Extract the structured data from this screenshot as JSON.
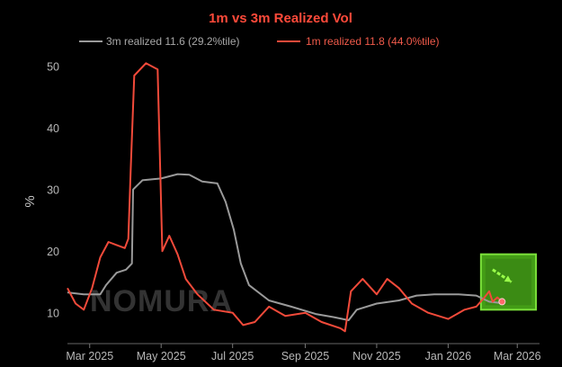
{
  "chart_data": {
    "type": "line",
    "title": "1m vs 3m Realized Vol",
    "ylabel": "%",
    "xlabel": "",
    "ylim": [
      5,
      52
    ],
    "yticks": [
      10,
      20,
      30,
      40,
      50
    ],
    "xlim": [
      "2025-02-10",
      "2026-03-20"
    ],
    "xticks": [
      {
        "date": "2025-03-01",
        "label": "Mar 2025"
      },
      {
        "date": "2025-05-01",
        "label": "May 2025"
      },
      {
        "date": "2025-07-01",
        "label": "Jul 2025"
      },
      {
        "date": "2025-09-01",
        "label": "Sep 2025"
      },
      {
        "date": "2025-11-01",
        "label": "Nov 2025"
      },
      {
        "date": "2026-01-01",
        "label": "Jan 2026"
      },
      {
        "date": "2026-03-01",
        "label": "Mar 2026"
      }
    ],
    "grid": false,
    "legend_position": "top",
    "series": [
      {
        "name": "3m realized 11.6 (29.2%tile)",
        "color": "#9a9a9a",
        "points": [
          [
            "2025-02-10",
            13.3
          ],
          [
            "2025-02-24",
            13.0
          ],
          [
            "2025-03-10",
            13.0
          ],
          [
            "2025-03-15",
            14.5
          ],
          [
            "2025-03-24",
            16.5
          ],
          [
            "2025-04-01",
            17.0
          ],
          [
            "2025-04-06",
            18.0
          ],
          [
            "2025-04-07",
            30.0
          ],
          [
            "2025-04-15",
            31.5
          ],
          [
            "2025-05-01",
            31.8
          ],
          [
            "2025-05-15",
            32.5
          ],
          [
            "2025-05-25",
            32.4
          ],
          [
            "2025-06-05",
            31.3
          ],
          [
            "2025-06-18",
            31.0
          ],
          [
            "2025-06-25",
            28.0
          ],
          [
            "2025-07-02",
            23.5
          ],
          [
            "2025-07-08",
            18.0
          ],
          [
            "2025-07-15",
            14.5
          ],
          [
            "2025-08-01",
            12.0
          ],
          [
            "2025-08-20",
            11.0
          ],
          [
            "2025-09-10",
            9.8
          ],
          [
            "2025-09-25",
            9.3
          ],
          [
            "2025-10-08",
            8.8
          ],
          [
            "2025-10-15",
            10.5
          ],
          [
            "2025-11-01",
            11.5
          ],
          [
            "2025-11-20",
            12.0
          ],
          [
            "2025-12-05",
            12.8
          ],
          [
            "2025-12-20",
            13.0
          ],
          [
            "2026-01-10",
            13.0
          ],
          [
            "2026-01-25",
            12.8
          ],
          [
            "2026-02-05",
            11.8
          ],
          [
            "2026-02-14",
            11.6
          ]
        ]
      },
      {
        "name": "1m realized 11.8 (44.0%tile)",
        "color": "#f24a3a",
        "points": [
          [
            "2025-02-10",
            14.0
          ],
          [
            "2025-02-17",
            11.5
          ],
          [
            "2025-02-24",
            10.5
          ],
          [
            "2025-03-03",
            14.0
          ],
          [
            "2025-03-10",
            19.0
          ],
          [
            "2025-03-17",
            21.5
          ],
          [
            "2025-03-24",
            21.0
          ],
          [
            "2025-03-31",
            20.5
          ],
          [
            "2025-04-03",
            22.0
          ],
          [
            "2025-04-05",
            33.0
          ],
          [
            "2025-04-08",
            48.5
          ],
          [
            "2025-04-18",
            50.5
          ],
          [
            "2025-04-28",
            49.5
          ],
          [
            "2025-05-02",
            20.0
          ],
          [
            "2025-05-08",
            22.5
          ],
          [
            "2025-05-15",
            19.5
          ],
          [
            "2025-05-22",
            15.5
          ],
          [
            "2025-06-01",
            13.0
          ],
          [
            "2025-06-15",
            10.5
          ],
          [
            "2025-07-01",
            10.0
          ],
          [
            "2025-07-10",
            8.0
          ],
          [
            "2025-07-20",
            8.5
          ],
          [
            "2025-08-01",
            11.0
          ],
          [
            "2025-08-15",
            9.5
          ],
          [
            "2025-09-01",
            10.0
          ],
          [
            "2025-09-15",
            8.5
          ],
          [
            "2025-10-01",
            7.5
          ],
          [
            "2025-10-05",
            7.0
          ],
          [
            "2025-10-10",
            13.5
          ],
          [
            "2025-10-20",
            15.5
          ],
          [
            "2025-11-01",
            13.0
          ],
          [
            "2025-11-10",
            15.5
          ],
          [
            "2025-11-20",
            14.0
          ],
          [
            "2025-12-01",
            11.5
          ],
          [
            "2025-12-15",
            10.0
          ],
          [
            "2026-01-01",
            9.0
          ],
          [
            "2026-01-15",
            10.5
          ],
          [
            "2026-01-25",
            11.0
          ],
          [
            "2026-02-01",
            12.5
          ],
          [
            "2026-02-05",
            13.5
          ],
          [
            "2026-02-08",
            11.8
          ],
          [
            "2026-02-12",
            12.5
          ],
          [
            "2026-02-16",
            11.8
          ]
        ]
      }
    ],
    "annotations": [
      {
        "type": "highlight-box",
        "x_range": [
          "2026-01-29",
          "2026-03-17"
        ],
        "y_range": [
          10.5,
          19.5
        ],
        "color": "#4fb81a"
      },
      {
        "type": "arrow",
        "from": [
          "2026-02-08",
          17.0
        ],
        "to": [
          "2026-02-24",
          15.0
        ],
        "color": "#9aff4a"
      }
    ],
    "watermark": "NOMURA"
  }
}
